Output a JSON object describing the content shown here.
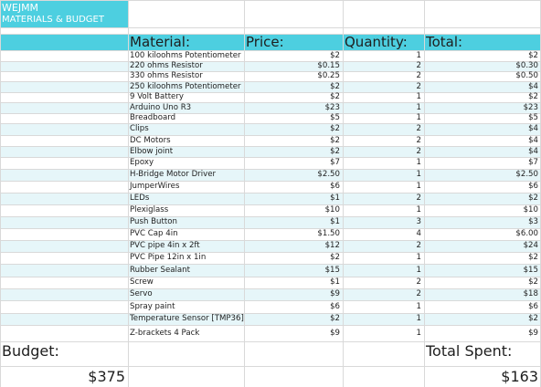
{
  "sheet": {
    "title_line1": "WEJMM",
    "title_line2": "MATERIALS & BUDGET",
    "accent_color": "#4dcfe0",
    "stripe_color": "#e6f6f9",
    "headers": {
      "material": "Material:",
      "price": "Price:",
      "quantity": "Quantity:",
      "total": "Total:"
    },
    "rows": [
      {
        "material": "100 kiloohms Potentiometer",
        "price": "$2",
        "quantity": "1",
        "total": "$2"
      },
      {
        "material": "220 ohms Resistor",
        "price": "$0.15",
        "quantity": "2",
        "total": "$0.30"
      },
      {
        "material": "330 ohms Resistor",
        "price": "$0.25",
        "quantity": "2",
        "total": "$0.50"
      },
      {
        "material": "250 kiloohms Potentiometer",
        "price": "$2",
        "quantity": "2",
        "total": "$4"
      },
      {
        "material": "9 Volt Battery",
        "price": "$2",
        "quantity": "1",
        "total": "$2"
      },
      {
        "material": "Arduino Uno R3",
        "price": "$23",
        "quantity": "1",
        "total": "$23"
      },
      {
        "material": "Breadboard",
        "price": "$5",
        "quantity": "1",
        "total": "$5"
      },
      {
        "material": "Clips",
        "price": "$2",
        "quantity": "2",
        "total": "$4"
      },
      {
        "material": "DC Motors",
        "price": "$2",
        "quantity": "2",
        "total": "$4"
      },
      {
        "material": "Elbow joint",
        "price": "$2",
        "quantity": "2",
        "total": "$4"
      },
      {
        "material": "Epoxy",
        "price": "$7",
        "quantity": "1",
        "total": "$7"
      },
      {
        "material": "H-Bridge Motor Driver",
        "price": "$2.50",
        "quantity": "1",
        "total": "$2.50"
      },
      {
        "material": "JumperWires",
        "price": "$6",
        "quantity": "1",
        "total": "$6"
      },
      {
        "material": "LEDs",
        "price": "$1",
        "quantity": "2",
        "total": "$2"
      },
      {
        "material": "Plexiglass",
        "price": "$10",
        "quantity": "1",
        "total": "$10"
      },
      {
        "material": "Push Button",
        "price": "$1",
        "quantity": "3",
        "total": "$3"
      },
      {
        "material": "PVC Cap 4in",
        "price": "$1.50",
        "quantity": "4",
        "total": "$6.00"
      },
      {
        "material": "PVC pipe  4in x 2ft",
        "price": "$12",
        "quantity": "2",
        "total": "$24"
      },
      {
        "material": "PVC Pipe 12in x 1in",
        "price": "$2",
        "quantity": "1",
        "total": "$2"
      },
      {
        "material": "Rubber Sealant",
        "price": "$15",
        "quantity": "1",
        "total": "$15"
      },
      {
        "material": "Screw",
        "price": "$1",
        "quantity": "2",
        "total": "$2"
      },
      {
        "material": "Servo",
        "price": "$9",
        "quantity": "2",
        "total": "$18"
      },
      {
        "material": "Spray paint",
        "price": "$6",
        "quantity": "1",
        "total": "$6"
      },
      {
        "material": "Temperature Sensor [TMP36]",
        "price": "$2",
        "quantity": "1",
        "total": "$2"
      },
      {
        "material": "Z-brackets 4 Pack",
        "price": "$9",
        "quantity": "1",
        "total": "$9"
      }
    ],
    "budget_label": "Budget:",
    "budget_value": "$375",
    "spent_label": "Total Spent:",
    "spent_value": "$163"
  }
}
